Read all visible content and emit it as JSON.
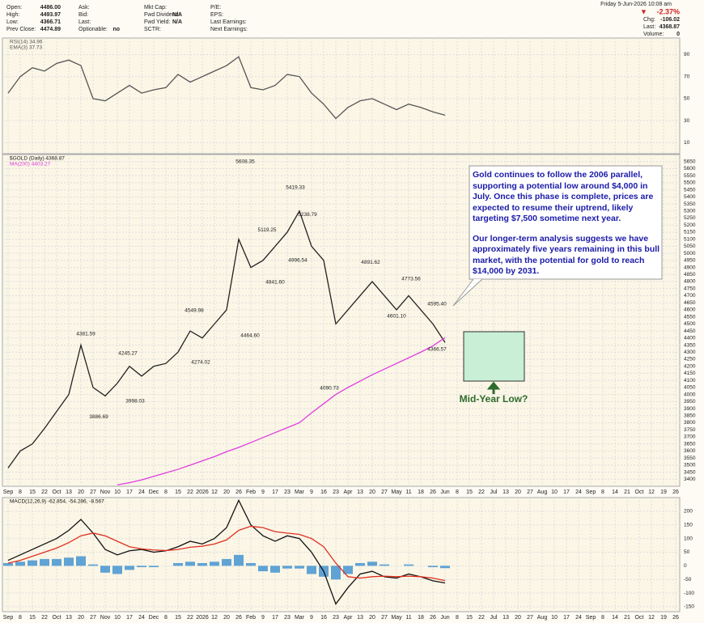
{
  "header": {
    "fields": [
      {
        "label": "Open:",
        "value": "4486.00"
      },
      {
        "label": "High:",
        "value": "4493.97"
      },
      {
        "label": "Low:",
        "value": "4366.71"
      },
      {
        "label": "Prev Close:",
        "value": "4474.89"
      },
      {
        "label": "Ask:"
      },
      {
        "label": "Bid:"
      },
      {
        "label": "Last:"
      },
      {
        "label": "Optionable:",
        "value": "no"
      },
      {
        "label": "Mkt Cap:"
      },
      {
        "label": "Fwd Dividend:",
        "value": "N/A"
      },
      {
        "label": "Fwd Yield:",
        "value": "N/A"
      },
      {
        "label": "SCTR:"
      },
      {
        "label": "P/E:"
      },
      {
        "label": "EPS:"
      },
      {
        "label": "Last Earnings:"
      },
      {
        "label": "Next Earnings:"
      }
    ],
    "date": "Friday 5-Jun-2026 10:08 am",
    "change_pct": "-2.37%",
    "quote": [
      {
        "label": "Chg:",
        "value": "-106.02"
      },
      {
        "label": "Last:",
        "value": "4368.87"
      },
      {
        "label": "Volume:",
        "value": "0"
      }
    ]
  },
  "x_labels": [
    "Sep",
    "8",
    "15",
    "22",
    "Oct",
    "13",
    "20",
    "27",
    "Nov",
    "10",
    "17",
    "24",
    "Dec",
    "8",
    "15",
    "22",
    "2026",
    "12",
    "20",
    "26",
    "Feb",
    "9",
    "17",
    "23",
    "Mar",
    "9",
    "16",
    "23",
    "Apr",
    "13",
    "20",
    "27",
    "May",
    "11",
    "18",
    "26",
    "Jun",
    "8",
    "15",
    "22",
    "Jul",
    "13",
    "20",
    "27",
    "Aug",
    "10",
    "17",
    "24",
    "Sep",
    "8",
    "14",
    "21",
    "Oct",
    "12",
    "19",
    "26"
  ],
  "chart_data": [
    {
      "type": "line",
      "legend": [
        "RSI(14) 34.96",
        "EMA(3) 37.73"
      ],
      "ylim": [
        0,
        105
      ],
      "yticks": [
        90,
        70,
        50,
        30,
        10
      ],
      "series": [
        {
          "color": "#555555",
          "values": [
            55,
            70,
            78,
            75,
            82,
            85,
            80,
            50,
            48,
            55,
            62,
            55,
            58,
            60,
            72,
            65,
            70,
            75,
            80,
            88,
            60,
            58,
            62,
            72,
            70,
            55,
            45,
            32,
            42,
            48,
            50,
            45,
            40,
            45,
            42,
            38,
            34.96
          ]
        }
      ]
    },
    {
      "type": "line",
      "legend": [
        "$GOLD (Daily) 4368.87",
        "MA(200) 4403.27"
      ],
      "ylim": [
        3350,
        5700
      ],
      "yticks": [
        3400,
        3450,
        3500,
        3550,
        3600,
        3650,
        3700,
        3750,
        3800,
        3850,
        3900,
        3950,
        4000,
        4050,
        4100,
        4150,
        4200,
        4250,
        4300,
        4350,
        4400,
        4450,
        4500,
        4550,
        4600,
        4650,
        4700,
        4750,
        4800,
        4850,
        4900,
        4950,
        5000,
        5050,
        5100,
        5150,
        5200,
        5250,
        5300,
        5350,
        5400,
        5450,
        5500,
        5550,
        5600,
        5650
      ],
      "series": [
        {
          "color": "#222222",
          "values": [
            3480,
            3600,
            3650,
            3760,
            3880,
            4000,
            4350,
            4050,
            3990,
            4080,
            4200,
            4130,
            4200,
            4220,
            4300,
            4450,
            4400,
            4500,
            4600,
            5100,
            4900,
            4950,
            5050,
            5150,
            5300,
            5050,
            4950,
            4500,
            4600,
            4700,
            4800,
            4700,
            4600,
            4700,
            4600,
            4500,
            4369
          ]
        },
        {
          "color": "#e03ce0",
          "values": [
            null,
            null,
            null,
            null,
            null,
            null,
            null,
            null,
            null,
            3360,
            3375,
            3395,
            3420,
            3445,
            3470,
            3500,
            3530,
            3560,
            3595,
            3625,
            3660,
            3695,
            3730,
            3765,
            3800,
            3870,
            3935,
            4000,
            4050,
            4095,
            4140,
            4180,
            4220,
            4260,
            4300,
            4345,
            4403
          ]
        }
      ],
      "annotations": [
        {
          "value": 4381.59,
          "label": "4381.59"
        },
        {
          "value": 3886.69,
          "label": "3886.69"
        },
        {
          "value": 4245.27,
          "label": "4245.27"
        },
        {
          "value": 3998.03,
          "label": "3998.03"
        },
        {
          "value": 4549.98,
          "label": "4549.98"
        },
        {
          "value": 4274.02,
          "label": "4274.02"
        },
        {
          "value": 5608.35,
          "label": "5608.35"
        },
        {
          "value": 4464.6,
          "label": "4464.60"
        },
        {
          "value": 5119.25,
          "label": "5119.25"
        },
        {
          "value": 4841.6,
          "label": "4841.60"
        },
        {
          "value": 5419.33,
          "label": "5419.33"
        },
        {
          "value": 4996.54,
          "label": "4996.54"
        },
        {
          "value": 5238.79,
          "label": "5238.79"
        },
        {
          "value": 4090.73,
          "label": "4090.73"
        },
        {
          "value": 4891.62,
          "label": "4891.62"
        },
        {
          "value": 4601.1,
          "label": "4601.10"
        },
        {
          "value": 4773.56,
          "label": "4773.56"
        },
        {
          "value": 4595.4,
          "label": "4595.40"
        },
        {
          "value": 4366.57,
          "label": "4366.57"
        }
      ],
      "note": [
        "Gold continues to follow the 2006 parallel, supporting a potential low around $4,000 in July. Once this phase is complete, prices are expected to resume their uptrend, likely targeting $7,500 sometime next year.",
        "Our longer-term analysis suggests we have approximately five years remaining in this bull market, with the potential for gold to reach $14,000 by 2031."
      ],
      "callout": "Mid-Year Low?"
    },
    {
      "type": "line",
      "legend": [
        "MACD(12,26,9) -62.854, -54.286, -8.567"
      ],
      "ylim": [
        -168,
        250
      ],
      "yticks": [
        200,
        150,
        100,
        50,
        0,
        -50,
        -100,
        -150
      ],
      "series": [
        {
          "color": "#111111",
          "values": [
            20,
            40,
            60,
            80,
            100,
            130,
            170,
            120,
            60,
            40,
            55,
            60,
            50,
            55,
            70,
            90,
            80,
            100,
            140,
            240,
            150,
            110,
            90,
            110,
            100,
            50,
            -20,
            -140,
            -80,
            -30,
            -20,
            -40,
            -45,
            -30,
            -40,
            -55,
            -62.854
          ]
        },
        {
          "color": "#e03020",
          "values": [
            10,
            20,
            35,
            50,
            65,
            85,
            110,
            120,
            110,
            90,
            70,
            62,
            58,
            56,
            60,
            68,
            72,
            80,
            95,
            130,
            145,
            140,
            125,
            120,
            115,
            100,
            70,
            10,
            -40,
            -45,
            -40,
            -38,
            -40,
            -38,
            -40,
            -45,
            -54.286
          ]
        }
      ],
      "histogram_color": "#3a8fd0",
      "histogram_values": [
        10,
        15,
        20,
        25,
        25,
        30,
        35,
        5,
        -25,
        -30,
        -15,
        -5,
        -5,
        0,
        10,
        15,
        10,
        15,
        25,
        40,
        10,
        -20,
        -25,
        -10,
        -10,
        -30,
        -40,
        -50,
        -30,
        10,
        15,
        5,
        0,
        5,
        0,
        -5,
        -8.567
      ]
    }
  ]
}
